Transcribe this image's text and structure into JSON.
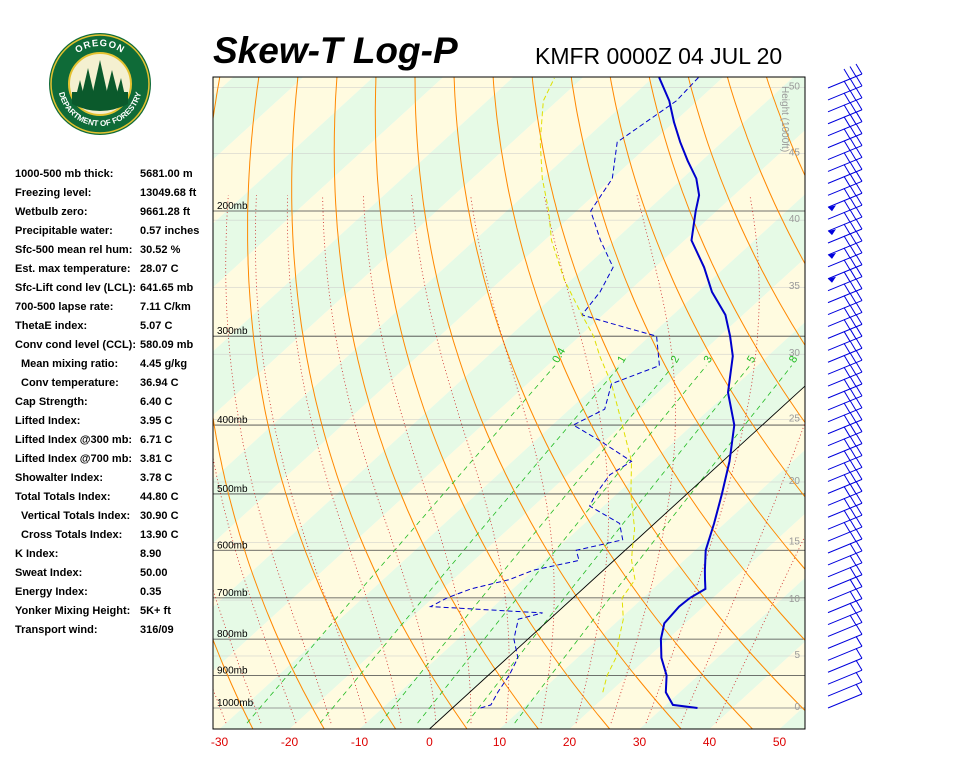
{
  "logo": {
    "top_text": "OREGON",
    "bottom_text": "DEPARTMENT OF FORESTRY",
    "colors": {
      "ring": "#0f6b38",
      "gold": "#e4c230",
      "sky": "#f4f0d0",
      "tree": "#0b5a2c"
    }
  },
  "header": {
    "title": "Skew-T Log-P",
    "station_time": "KMFR 0000Z 04 JUL 20"
  },
  "indices": [
    {
      "label": "1000-500 mb thick:",
      "value": "5681.00 m",
      "indent": false
    },
    {
      "label": "Freezing level:",
      "value": "13049.68 ft",
      "indent": false
    },
    {
      "label": "Wetbulb zero:",
      "value": "9661.28 ft",
      "indent": false
    },
    {
      "label": "Precipitable water:",
      "value": "0.57 inches",
      "indent": false
    },
    {
      "label": "Sfc-500 mean rel hum:",
      "value": "30.52 %",
      "indent": false
    },
    {
      "label": "Est. max temperature:",
      "value": "28.07 C",
      "indent": false
    },
    {
      "label": "Sfc-Lift cond lev (LCL):",
      "value": "641.65 mb",
      "indent": false
    },
    {
      "label": "700-500 lapse rate:",
      "value": "7.11 C/km",
      "indent": false
    },
    {
      "label": "ThetaE index:",
      "value": "5.07 C",
      "indent": false
    },
    {
      "label": "Conv cond level (CCL):",
      "value": "580.09 mb",
      "indent": false
    },
    {
      "label": "Mean mixing ratio:",
      "value": "4.45 g/kg",
      "indent": true
    },
    {
      "label": "Conv temperature:",
      "value": "36.94 C",
      "indent": true
    },
    {
      "label": "Cap Strength:",
      "value": "6.40 C",
      "indent": false
    },
    {
      "label": "Lifted Index:",
      "value": "3.95 C",
      "indent": false
    },
    {
      "label": "Lifted Index @300 mb:",
      "value": "6.71 C",
      "indent": false
    },
    {
      "label": "Lifted Index @700 mb:",
      "value": "3.81 C",
      "indent": false
    },
    {
      "label": "Showalter Index:",
      "value": "3.78 C",
      "indent": false
    },
    {
      "label": "Total Totals Index:",
      "value": "44.80 C",
      "indent": false
    },
    {
      "label": "Vertical Totals Index:",
      "value": "30.90 C",
      "indent": true
    },
    {
      "label": "Cross Totals Index:",
      "value": "13.90 C",
      "indent": true
    },
    {
      "label": "K Index:",
      "value": "8.90",
      "indent": false
    },
    {
      "label": "Sweat Index:",
      "value": "50.00",
      "indent": false
    },
    {
      "label": "Energy Index:",
      "value": "0.35",
      "indent": false
    },
    {
      "label": "Yonker Mixing Height:",
      "value": "5K+ ft",
      "indent": false
    },
    {
      "label": "Transport wind:",
      "value": "316/09",
      "indent": false
    }
  ],
  "chart_data": {
    "type": "line",
    "title": "Skew-T Log-P",
    "subtitle": "KMFR 0000Z 04 JUL 20",
    "x_ticks": [
      "-30",
      "-20",
      "-10",
      "0",
      "10",
      "20",
      "30",
      "40",
      "50"
    ],
    "xlim": [
      -30,
      50
    ],
    "pressure_levels": [
      {
        "p": 200,
        "label": "200mb"
      },
      {
        "p": 300,
        "label": "300mb"
      },
      {
        "p": 400,
        "label": "400mb"
      },
      {
        "p": 500,
        "label": "500mb"
      },
      {
        "p": 600,
        "label": "600mb"
      },
      {
        "p": 700,
        "label": "700mb"
      },
      {
        "p": 800,
        "label": "800mb"
      },
      {
        "p": 900,
        "label": "900mb"
      },
      {
        "p": 1000,
        "label": "1000mb"
      }
    ],
    "height_axis_label": "Height (1000ft)",
    "height_ticks": [
      {
        "h": 0,
        "label": "0",
        "p": 1000
      },
      {
        "h": 5,
        "label": "5",
        "p": 845
      },
      {
        "h": 10,
        "label": "10",
        "p": 705
      },
      {
        "h": 15,
        "label": "15",
        "p": 585
      },
      {
        "h": 20,
        "label": "20",
        "p": 481
      },
      {
        "h": 25,
        "label": "25",
        "p": 393
      },
      {
        "h": 30,
        "label": "30",
        "p": 318
      },
      {
        "h": 35,
        "label": "35",
        "p": 256
      },
      {
        "h": 40,
        "label": "40",
        "p": 206
      },
      {
        "h": 45,
        "label": "45",
        "p": 166
      },
      {
        "h": 50,
        "label": "50",
        "p": 134
      }
    ],
    "mixing_ratio_labels": [
      "0.4",
      "1",
      "2",
      "3",
      "5",
      "8"
    ],
    "mixing_ratio_values": [
      0.4,
      1,
      2,
      3,
      5,
      8
    ],
    "series": [
      {
        "color": "#0000cc",
        "style": "solid",
        "points": [
          [
            1000,
            35
          ],
          [
            990,
            31
          ],
          [
            950,
            28
          ],
          [
            900,
            25.5
          ],
          [
            850,
            22
          ],
          [
            800,
            19
          ],
          [
            760,
            17
          ],
          [
            720,
            16.5
          ],
          [
            700,
            16.7
          ],
          [
            680,
            17.5
          ],
          [
            660,
            16
          ],
          [
            640,
            14.5
          ],
          [
            600,
            11.5
          ],
          [
            550,
            8.5
          ],
          [
            500,
            5
          ],
          [
            450,
            1
          ],
          [
            400,
            -4
          ],
          [
            360,
            -10
          ],
          [
            320,
            -15
          ],
          [
            300,
            -18.5
          ],
          [
            280,
            -22.5
          ],
          [
            260,
            -28
          ],
          [
            240,
            -33
          ],
          [
            220,
            -39
          ],
          [
            200,
            -43
          ],
          [
            190,
            -45
          ],
          [
            180,
            -48
          ],
          [
            170,
            -52
          ],
          [
            160,
            -56
          ],
          [
            150,
            -60
          ],
          [
            140,
            -64
          ],
          [
            130,
            -69
          ],
          [
            120,
            -72
          ],
          [
            110,
            -74
          ]
        ]
      },
      {
        "color": "#0000cc",
        "style": "dashed",
        "points": [
          [
            1000,
            4
          ],
          [
            990,
            5
          ],
          [
            950,
            4
          ],
          [
            900,
            3
          ],
          [
            850,
            1.5
          ],
          [
            800,
            -2
          ],
          [
            750,
            -4.5
          ],
          [
            735,
            -2
          ],
          [
            720,
            -19
          ],
          [
            700,
            -18
          ],
          [
            680,
            -16
          ],
          [
            660,
            -12
          ],
          [
            640,
            -10
          ],
          [
            620,
            -5
          ],
          [
            600,
            -7
          ],
          [
            580,
            -2
          ],
          [
            550,
            -5
          ],
          [
            520,
            -12
          ],
          [
            500,
            -13
          ],
          [
            470,
            -14
          ],
          [
            450,
            -13
          ],
          [
            420,
            -21
          ],
          [
            400,
            -27
          ],
          [
            380,
            -25
          ],
          [
            350,
            -28
          ],
          [
            330,
            -24
          ],
          [
            300,
            -29
          ],
          [
            290,
            -36
          ],
          [
            280,
            -43
          ],
          [
            260,
            -44
          ],
          [
            240,
            -46
          ],
          [
            220,
            -52
          ],
          [
            200,
            -58
          ],
          [
            180,
            -60
          ],
          [
            160,
            -65
          ],
          [
            140,
            -63
          ],
          [
            120,
            -64
          ],
          [
            110,
            -63
          ]
        ]
      },
      {
        "color": "#e0e000",
        "style": "dashed",
        "points": [
          [
            950,
            19
          ],
          [
            900,
            17
          ],
          [
            850,
            15.5
          ],
          [
            800,
            13
          ],
          [
            750,
            10.5
          ],
          [
            700,
            7
          ],
          [
            660,
            6
          ],
          [
            620,
            2.5
          ],
          [
            600,
            1
          ],
          [
            560,
            -2
          ],
          [
            500,
            -8
          ],
          [
            450,
            -13
          ],
          [
            400,
            -20
          ],
          [
            350,
            -28
          ],
          [
            320,
            -34
          ],
          [
            300,
            -38
          ],
          [
            280,
            -43
          ],
          [
            250,
            -51
          ],
          [
            220,
            -59
          ],
          [
            200,
            -64
          ],
          [
            180,
            -70
          ],
          [
            160,
            -76
          ],
          [
            140,
            -82
          ],
          [
            130,
            -84
          ]
        ]
      }
    ],
    "wind_barb_count": 53,
    "colors": {
      "isotherm": "#000000",
      "dry_adiabat": "#ff8800",
      "moist_adiabat": "#22bb22",
      "mixing_ratio": "#22bb22",
      "height": "#888888",
      "band_warm": "#fffbe0",
      "band_cool": "#e6fae6",
      "isobar": "#444444",
      "tick_label": "#dd0000"
    }
  }
}
